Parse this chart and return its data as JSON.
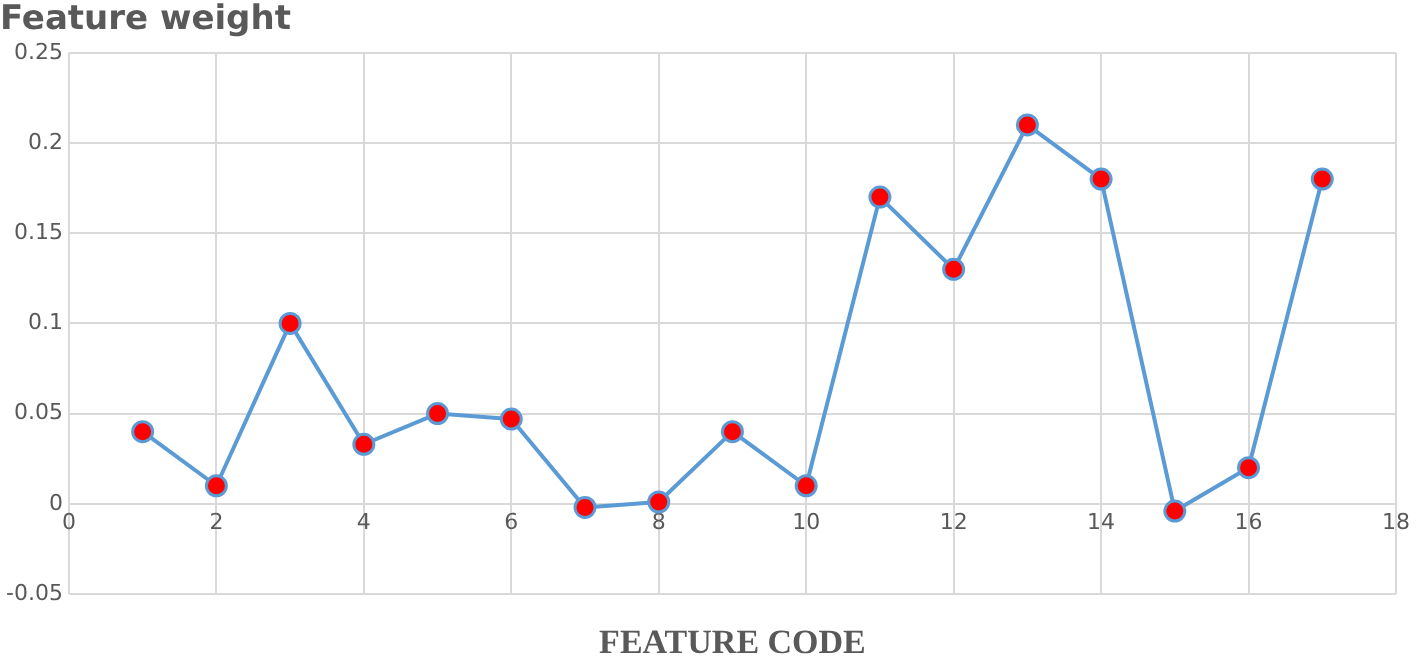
{
  "chart_data": {
    "type": "line",
    "title": "Feature weight",
    "xlabel": "FEATURE CODE",
    "x": [
      1,
      2,
      3,
      4,
      5,
      6,
      7,
      8,
      9,
      10,
      11,
      12,
      13,
      14,
      15,
      16,
      17
    ],
    "series": [
      {
        "color": "#5b9bd5",
        "values": [
          0.04,
          0.01,
          0.1,
          0.033,
          0.05,
          0.047,
          -0.002,
          0.001,
          0.04,
          0.01,
          0.17,
          0.13,
          0.21,
          0.18,
          -0.004,
          0.02,
          0.18
        ]
      }
    ],
    "xlim": [
      0,
      18
    ],
    "xticks": [
      0,
      2,
      4,
      6,
      8,
      10,
      12,
      14,
      16,
      18
    ],
    "ylim": [
      -0.05,
      0.25
    ],
    "yticks": [
      -0.05,
      0,
      0.05,
      0.1,
      0.15,
      0.2,
      0.25
    ],
    "grid": true,
    "legend": false,
    "marker": "circle",
    "line_style": "solid"
  }
}
